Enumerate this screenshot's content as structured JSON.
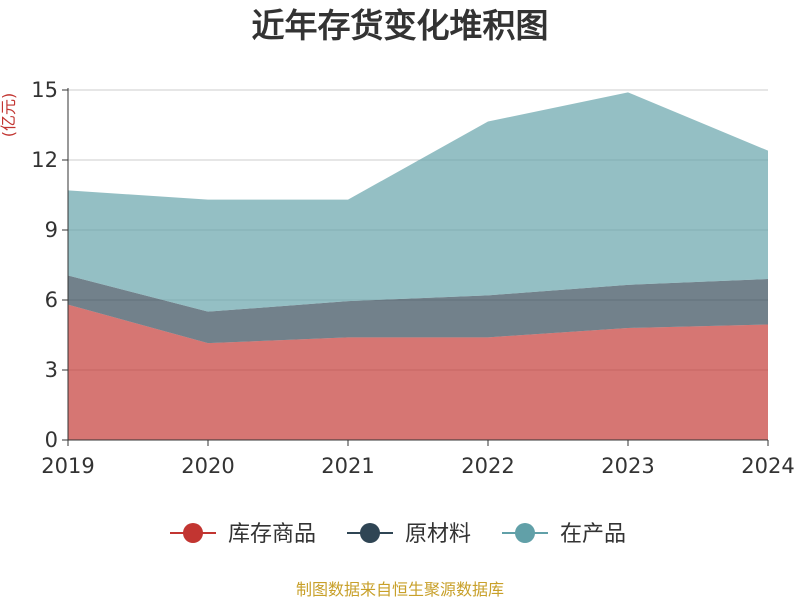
{
  "colors": {
    "series": [
      "#c23531",
      "#2f4554",
      "#61a0a8"
    ],
    "grid": "#cccccc",
    "axis": "#333333",
    "unit": "#c23531",
    "footer": "#c8a02a"
  },
  "chart_data": {
    "type": "area",
    "stacked": true,
    "title": "近年存货变化堆积图",
    "y_unit": "(亿元)",
    "categories": [
      "2019",
      "2020",
      "2021",
      "2022",
      "2023",
      "2024"
    ],
    "series": [
      {
        "name": "库存商品",
        "values": [
          5.8,
          4.15,
          4.4,
          4.4,
          4.8,
          4.95
        ]
      },
      {
        "name": "原材料",
        "values": [
          1.25,
          1.35,
          1.55,
          1.8,
          1.85,
          1.95
        ]
      },
      {
        "name": "在产品",
        "values": [
          3.65,
          4.8,
          4.35,
          7.45,
          8.25,
          5.5
        ]
      }
    ],
    "ylim": [
      0,
      15
    ],
    "y_ticks": [
      0,
      3,
      6,
      9,
      12,
      15
    ],
    "grid": true,
    "legend_position": "bottom"
  },
  "footer": "制图数据来自恒生聚源数据库"
}
